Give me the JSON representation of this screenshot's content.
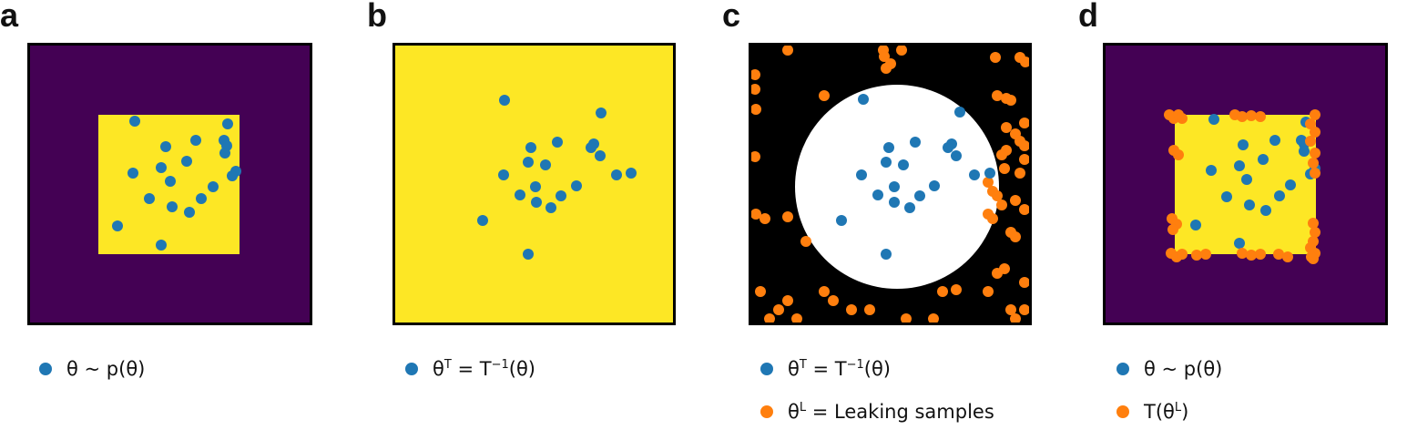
{
  "colors": {
    "blue": "#1f77b4",
    "orange": "#ff7f0e",
    "purple": "#440154",
    "yellow": "#fde725",
    "black": "#000000",
    "white": "#ffffff"
  },
  "panels": [
    {
      "letter": "a",
      "legend": [
        {
          "color": "blue",
          "main": "θ ~ p(θ)"
        }
      ]
    },
    {
      "letter": "b",
      "legend": [
        {
          "color": "blue",
          "pre": "θ",
          "sup1": "T",
          "mid": " = T",
          "sup2": "−1",
          "post": "(θ)"
        }
      ]
    },
    {
      "letter": "c",
      "legend": [
        {
          "color": "blue",
          "pre": "θ",
          "sup1": "T",
          "mid": " = T",
          "sup2": "−1",
          "post": "(θ)"
        },
        {
          "color": "orange",
          "pre": "θ",
          "sup1": "L",
          "mid": " = Leaking samples"
        }
      ]
    },
    {
      "letter": "d",
      "legend": [
        {
          "color": "blue",
          "main": "θ ~ p(θ)"
        },
        {
          "color": "orange",
          "pre": "T(θ",
          "sup1": "L",
          "mid": ")"
        }
      ]
    }
  ]
}
